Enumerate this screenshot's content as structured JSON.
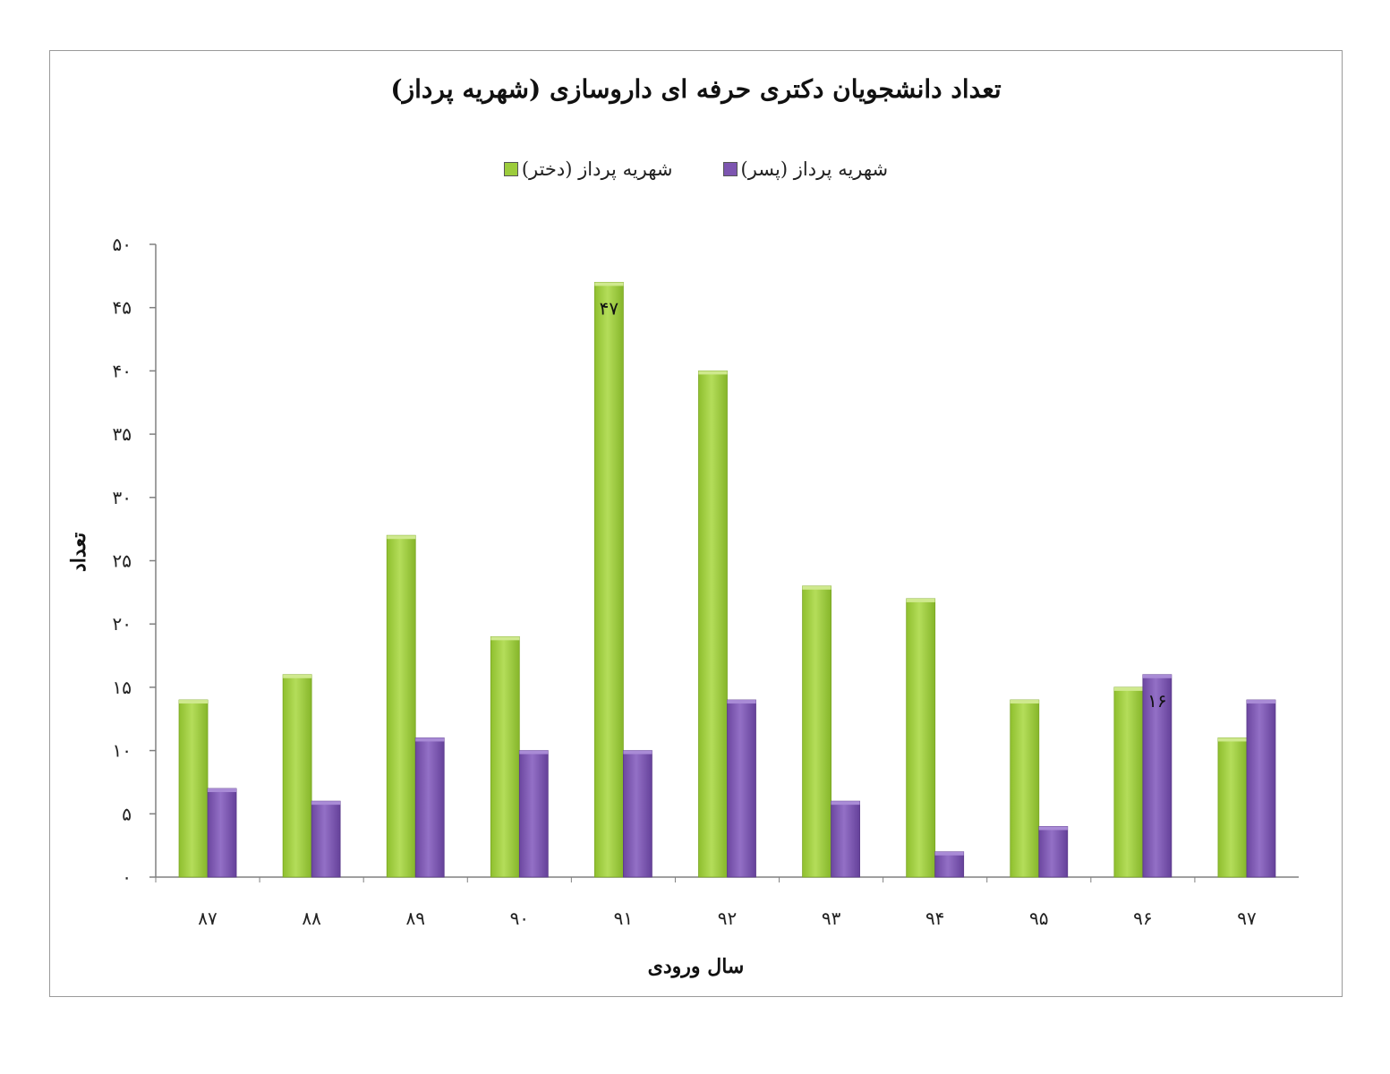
{
  "chart_data": {
    "type": "bar",
    "title": "تعداد دانشجویان دکتری حرفه ای داروسازی (شهریه پرداز)",
    "xlabel": "سال ورودی",
    "ylabel": "تعداد",
    "categories": [
      "۸۷",
      "۸۸",
      "۸۹",
      "۹۰",
      "۹۱",
      "۹۲",
      "۹۳",
      "۹۴",
      "۹۵",
      "۹۶",
      "۹۷"
    ],
    "series": [
      {
        "name": "شهریه پرداز (دختر)",
        "color": "#9ccc3c",
        "values": [
          14,
          16,
          27,
          19,
          47,
          40,
          23,
          22,
          14,
          15,
          11
        ]
      },
      {
        "name": "شهریه پرداز (پسر)",
        "color": "#7d55b0",
        "values": [
          7,
          6,
          11,
          10,
          10,
          14,
          6,
          2,
          4,
          16,
          14
        ]
      }
    ],
    "y_ticks": [
      "۰",
      "۵",
      "۱۰",
      "۱۵",
      "۲۰",
      "۲۵",
      "۳۰",
      "۳۵",
      "۴۰",
      "۴۵",
      "۵۰"
    ],
    "ylim": [
      0,
      50
    ],
    "grid": false,
    "legend_position": "top",
    "data_labels": [
      {
        "series": 0,
        "category": 4,
        "text": "۴۷"
      },
      {
        "series": 1,
        "category": 9,
        "text": "۱۶"
      }
    ]
  }
}
